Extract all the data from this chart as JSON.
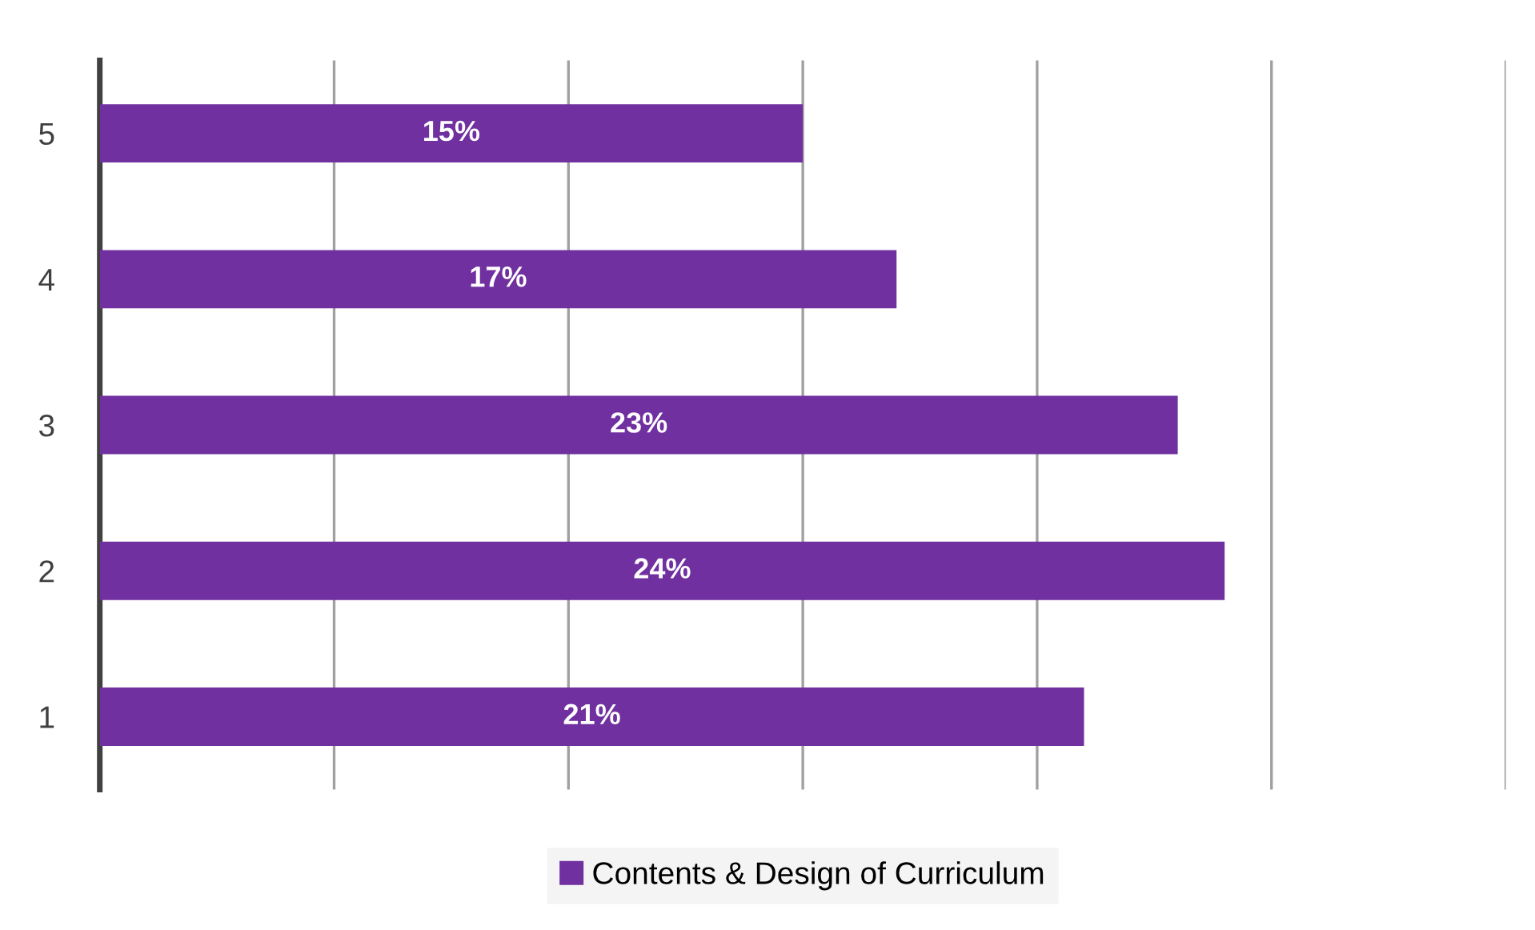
{
  "chart_data": {
    "type": "bar",
    "orientation": "horizontal",
    "categories": [
      "5",
      "4",
      "3",
      "2",
      "1"
    ],
    "series": [
      {
        "name": "Contents & Design of Curriculum",
        "color": "#7030a0",
        "values": [
          15,
          17,
          23,
          24,
          21
        ],
        "value_labels": [
          "15%",
          "17%",
          "23%",
          "24%",
          "21%"
        ]
      }
    ],
    "tick_labels": "y",
    "grid": "x",
    "legend": "bottom"
  }
}
